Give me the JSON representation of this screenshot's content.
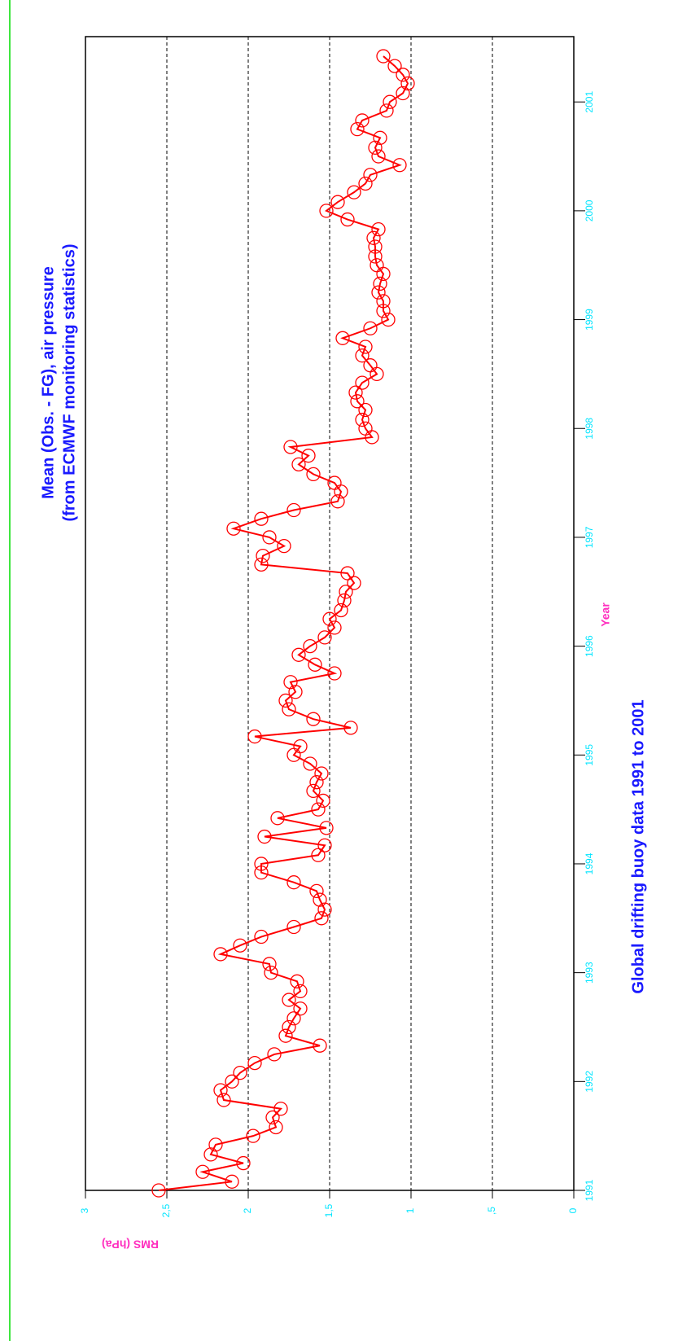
{
  "chart_data": {
    "type": "line",
    "title": "Mean (Obs. - FG), air pressure",
    "subtitle": "(from ECMWF monitoring statistics)",
    "caption": "Global drifting buoy data 1991 to 2001",
    "x_label": "Year",
    "y_label": "RMS (hPa)",
    "grid": true,
    "xlim": [
      1991,
      2001.6
    ],
    "xticks": [
      1991,
      1992,
      1993,
      1994,
      1995,
      1996,
      1997,
      1998,
      1999,
      2000,
      2001
    ],
    "ylim": [
      0,
      3
    ],
    "yticks": [
      0,
      {
        "value": 0.5,
        "label": ",5"
      },
      1,
      {
        "value": 1.5,
        "label": "1,5"
      },
      2,
      {
        "value": 2.5,
        "label": "2,5"
      },
      3
    ],
    "x": [
      1991,
      1991.08,
      1991.17,
      1991.25,
      1991.33,
      1991.42,
      1991.5,
      1991.58,
      1991.67,
      1991.75,
      1991.83,
      1991.92,
      1992,
      1992.08,
      1992.17,
      1992.25,
      1992.33,
      1992.42,
      1992.5,
      1992.58,
      1992.67,
      1992.75,
      1992.83,
      1992.92,
      1993,
      1993.08,
      1993.17,
      1993.25,
      1993.33,
      1993.42,
      1993.5,
      1993.58,
      1993.67,
      1993.75,
      1993.83,
      1993.92,
      1994,
      1994.08,
      1994.17,
      1994.25,
      1994.33,
      1994.42,
      1994.5,
      1994.58,
      1994.67,
      1994.75,
      1994.83,
      1994.92,
      1995,
      1995.08,
      1995.17,
      1995.25,
      1995.33,
      1995.42,
      1995.5,
      1995.58,
      1995.67,
      1995.75,
      1995.83,
      1995.92,
      1996,
      1996.08,
      1996.17,
      1996.25,
      1996.33,
      1996.42,
      1996.5,
      1996.58,
      1996.67,
      1996.75,
      1996.83,
      1996.92,
      1997,
      1997.08,
      1997.17,
      1997.25,
      1997.33,
      1997.42,
      1997.5,
      1997.58,
      1997.67,
      1997.75,
      1997.83,
      1997.92,
      1998,
      1998.08,
      1998.17,
      1998.25,
      1998.33,
      1998.42,
      1998.5,
      1998.58,
      1998.67,
      1998.75,
      1998.83,
      1998.92,
      1999,
      1999.08,
      1999.17,
      1999.25,
      1999.33,
      1999.42,
      1999.5,
      1999.58,
      1999.67,
      1999.75,
      1999.83,
      1999.92,
      2000,
      2000.08,
      2000.17,
      2000.25,
      2000.33,
      2000.42,
      2000.5,
      2000.58,
      2000.67,
      2000.75,
      2000.83,
      2000.92,
      2001,
      2001.08,
      2001.17,
      2001.25,
      2001.33,
      2001.42
    ],
    "series": [
      {
        "color": "#ff0000",
        "values": [
          2.55,
          2.1,
          2.28,
          2.03,
          2.23,
          2.2,
          1.97,
          1.83,
          1.85,
          1.8,
          2.15,
          2.17,
          2.1,
          2.05,
          1.96,
          1.84,
          1.56,
          1.77,
          1.75,
          1.72,
          1.68,
          1.75,
          1.68,
          1.7,
          1.86,
          1.87,
          2.17,
          2.05,
          1.92,
          1.72,
          1.55,
          1.53,
          1.56,
          1.58,
          1.72,
          1.92,
          1.92,
          1.57,
          1.53,
          1.9,
          1.52,
          1.82,
          1.57,
          1.54,
          1.6,
          1.58,
          1.55,
          1.62,
          1.72,
          1.68,
          1.96,
          1.37,
          1.6,
          1.75,
          1.77,
          1.71,
          1.74,
          1.47,
          1.59,
          1.69,
          1.62,
          1.53,
          1.47,
          1.5,
          1.43,
          1.41,
          1.4,
          1.35,
          1.39,
          1.92,
          1.91,
          1.78,
          1.87,
          2.09,
          1.92,
          1.72,
          1.45,
          1.43,
          1.47,
          1.6,
          1.69,
          1.63,
          1.74,
          1.24,
          1.28,
          1.3,
          1.28,
          1.33,
          1.34,
          1.3,
          1.21,
          1.25,
          1.3,
          1.28,
          1.42,
          1.25,
          1.14,
          1.17,
          1.17,
          1.2,
          1.19,
          1.17,
          1.21,
          1.22,
          1.22,
          1.23,
          1.2,
          1.39,
          1.52,
          1.45,
          1.35,
          1.28,
          1.25,
          1.07,
          1.2,
          1.22,
          1.19,
          1.33,
          1.3,
          1.15,
          1.13,
          1.05,
          1.02,
          1.05,
          1.1,
          1.17
        ]
      }
    ]
  }
}
